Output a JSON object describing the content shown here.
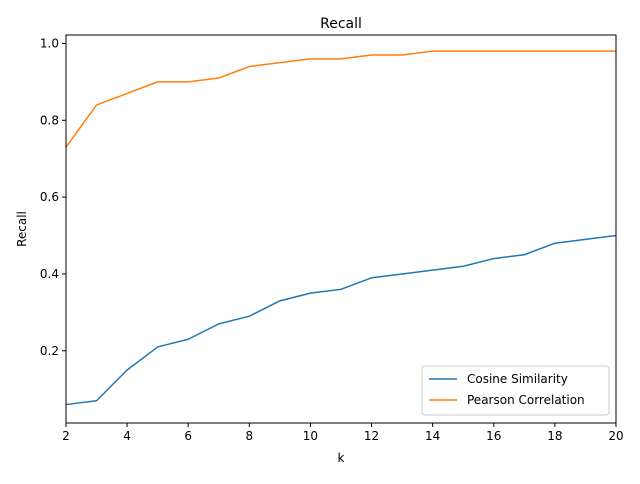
{
  "chart_data": {
    "type": "line",
    "title": "Recall",
    "xlabel": "k",
    "ylabel": "Recall",
    "xlim": [
      2,
      20
    ],
    "ylim": [
      0.012,
      1.022
    ],
    "xticks": [
      2,
      4,
      6,
      8,
      10,
      12,
      14,
      16,
      18,
      20
    ],
    "yticks": [
      0.2,
      0.4,
      0.6,
      0.8,
      1.0
    ],
    "xtick_labels": [
      "2",
      "4",
      "6",
      "8",
      "10",
      "12",
      "14",
      "16",
      "18",
      "20"
    ],
    "ytick_labels": [
      "0.2",
      "0.4",
      "0.6",
      "0.8",
      "1.0"
    ],
    "grid": false,
    "legend_position": "lower-right",
    "x": [
      2,
      3,
      4,
      5,
      6,
      7,
      8,
      9,
      10,
      11,
      12,
      13,
      14,
      15,
      16,
      17,
      18,
      19,
      20
    ],
    "series": [
      {
        "name": "Cosine Similarity",
        "color": "#1f77b4",
        "values": [
          0.06,
          0.07,
          0.15,
          0.21,
          0.23,
          0.27,
          0.29,
          0.33,
          0.35,
          0.36,
          0.39,
          0.4,
          0.41,
          0.42,
          0.44,
          0.45,
          0.48,
          0.49,
          0.5
        ]
      },
      {
        "name": "Pearson Correlation",
        "color": "#ff7f0e",
        "values": [
          0.73,
          0.84,
          0.87,
          0.9,
          0.9,
          0.91,
          0.94,
          0.95,
          0.96,
          0.96,
          0.97,
          0.97,
          0.98,
          0.98,
          0.98,
          0.98,
          0.98,
          0.98,
          0.98
        ]
      }
    ]
  }
}
